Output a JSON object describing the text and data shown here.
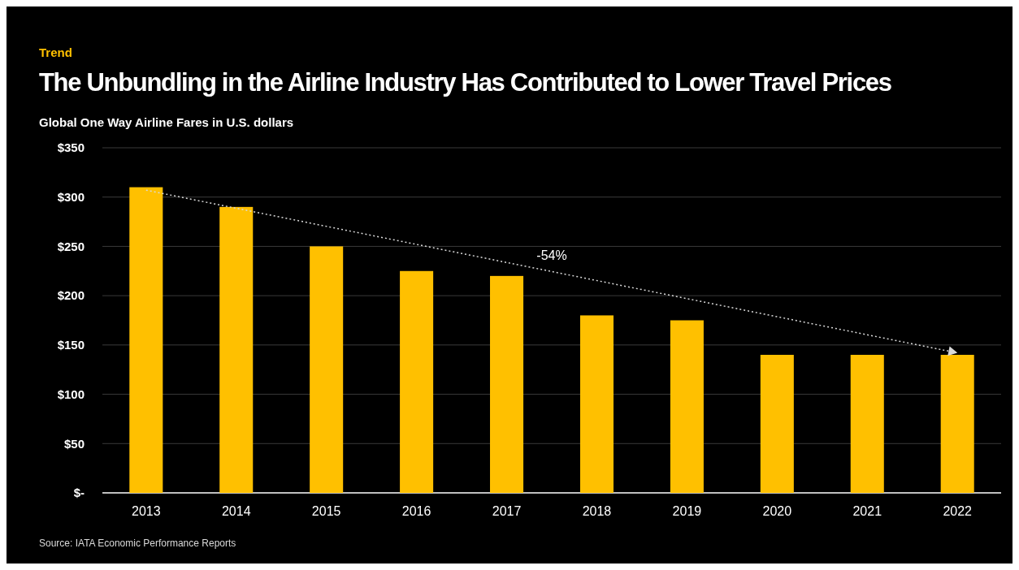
{
  "chart_data": {
    "type": "bar",
    "title": "The Unbundling in the Airline Industry Has Contributed to Lower Travel Prices",
    "subtitle": "Global One Way Airline Fares in U.S. dollars",
    "categories": [
      "2013",
      "2014",
      "2015",
      "2016",
      "2017",
      "2018",
      "2019",
      "2020",
      "2021",
      "2022"
    ],
    "series": [
      {
        "color": "#ffc000",
        "values": [
          310,
          290,
          250,
          225,
          220,
          180,
          175,
          140,
          140,
          140
        ]
      },
      {
        "type": "line",
        "color": "#d9d9d9",
        "values": [
          307,
          null,
          null,
          null,
          null,
          null,
          null,
          null,
          null,
          142
        ],
        "line_style": "dotted"
      }
    ],
    "ylim": [
      0,
      350
    ],
    "yticks": [
      {
        "value": 0,
        "label": "$-"
      },
      {
        "value": 50,
        "label": "$50"
      },
      {
        "value": 100,
        "label": "$100"
      },
      {
        "value": 150,
        "label": "$150"
      },
      {
        "value": 200,
        "label": "$200"
      },
      {
        "value": 250,
        "label": "$250"
      },
      {
        "value": 300,
        "label": "$300"
      },
      {
        "value": 350,
        "label": "$350"
      }
    ],
    "grid": "y",
    "annotations": [
      "Trend",
      "-54%",
      "Source: IATA Economic Performance Reports"
    ]
  }
}
